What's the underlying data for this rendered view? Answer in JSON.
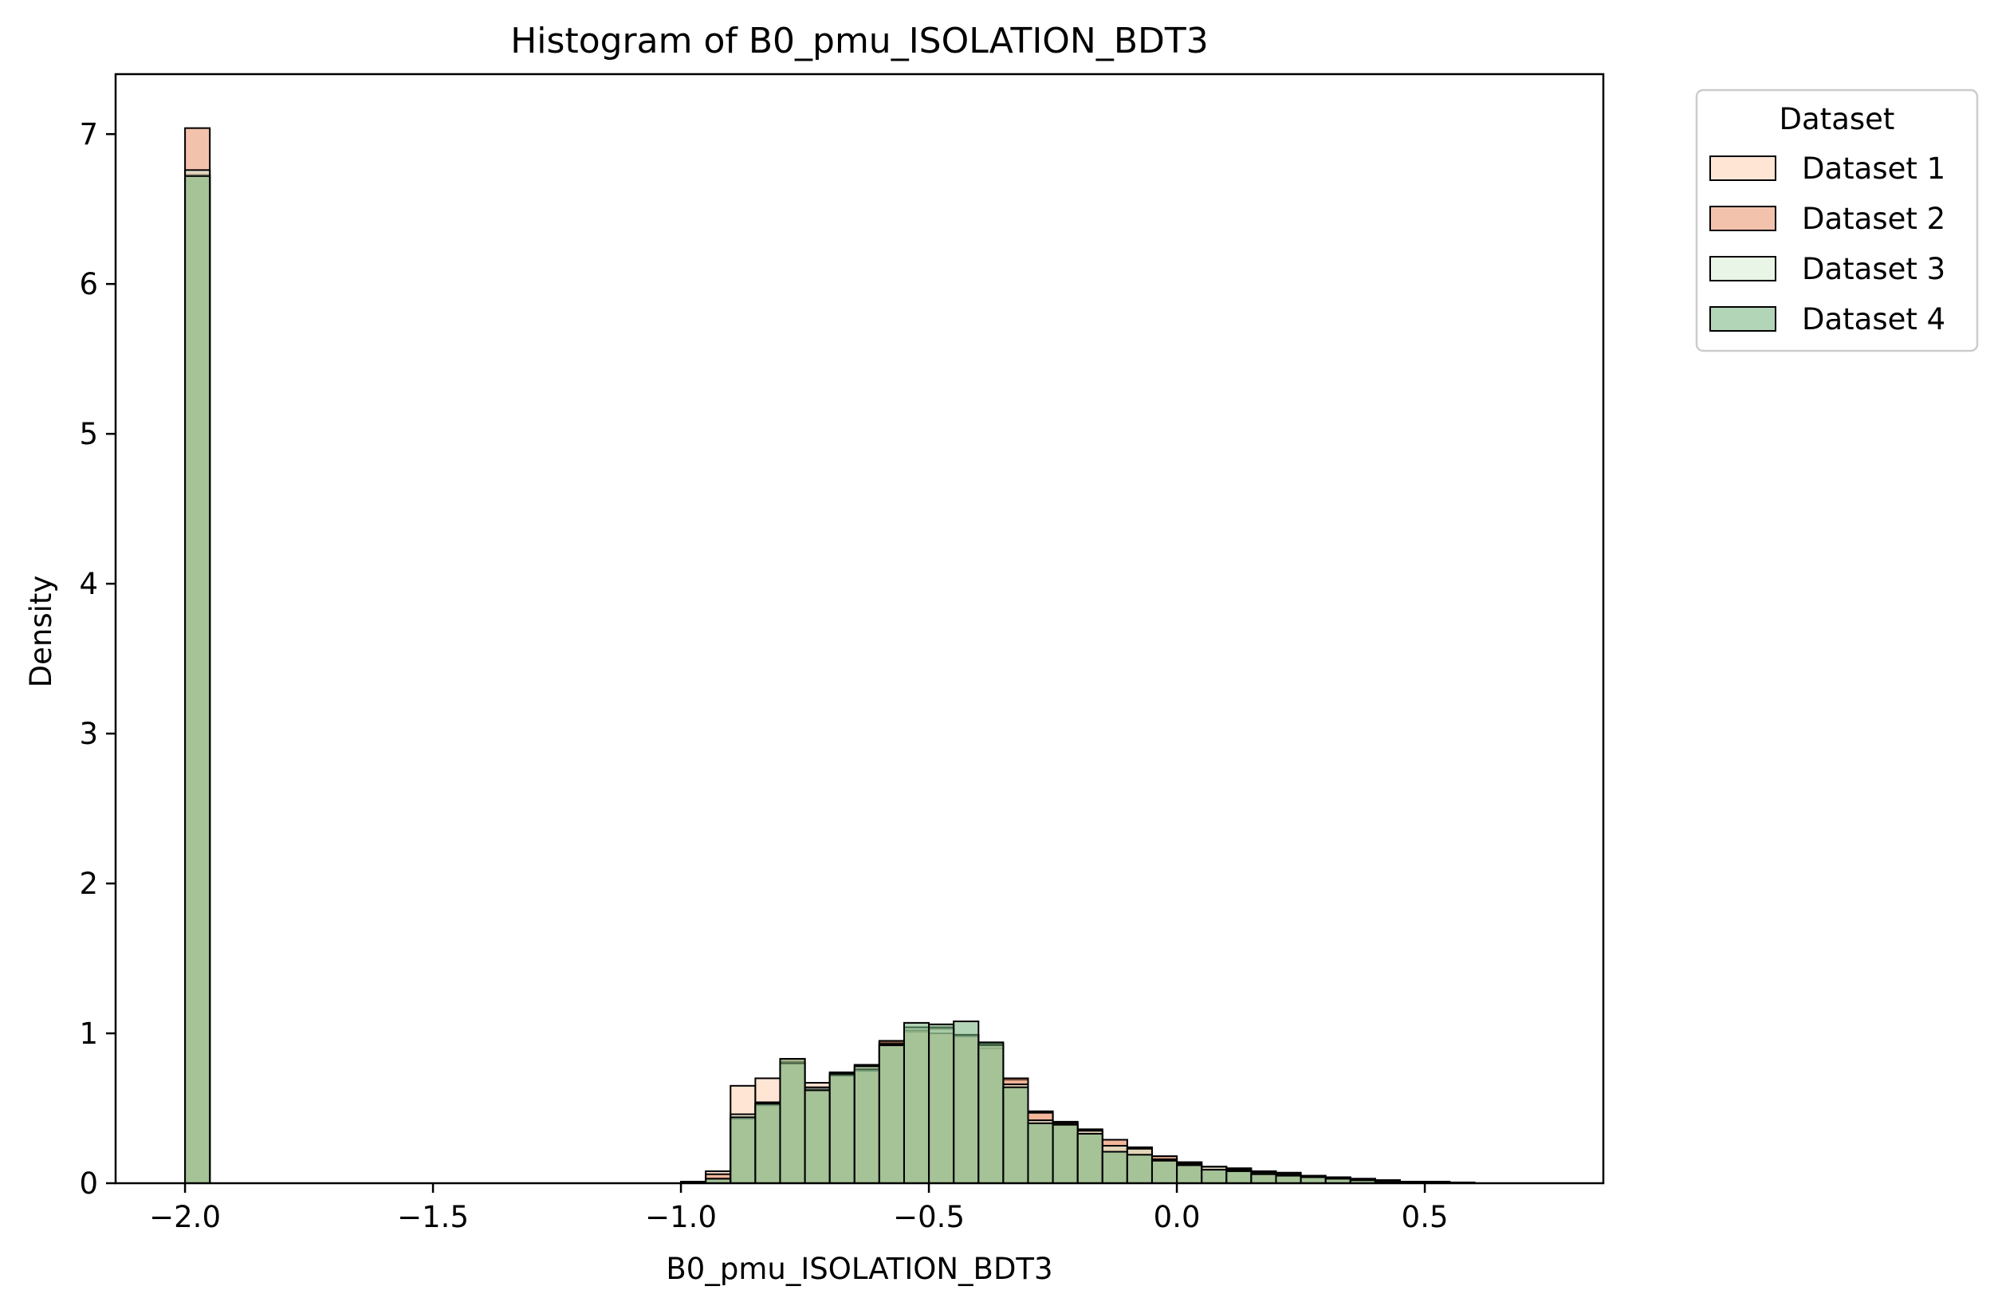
{
  "chart_data": {
    "type": "bar",
    "title": "Histogram of B0_pmu_ISOLATION_BDT3",
    "xlabel": "B0_pmu_ISOLATION_BDT3",
    "ylabel": "Density",
    "xlim": [
      -2.14,
      0.86
    ],
    "ylim": [
      0,
      7.4
    ],
    "xticks": [
      -2.0,
      -1.5,
      -1.0,
      -0.5,
      0.0,
      0.5
    ],
    "xtick_labels": [
      "−2.0",
      "−1.5",
      "−1.0",
      "−0.5",
      "0.0",
      "0.5"
    ],
    "yticks": [
      0,
      1,
      2,
      3,
      4,
      5,
      6,
      7
    ],
    "ytick_labels": [
      "0",
      "1",
      "2",
      "3",
      "4",
      "5",
      "6",
      "7"
    ],
    "grid": false,
    "legend": {
      "title": "Dataset",
      "placement": "outside-upper-right"
    },
    "bin_edges": [
      -2.0,
      -1.95,
      -1.9,
      -1.85,
      -1.8,
      -1.75,
      -1.7,
      -1.65,
      -1.6,
      -1.55,
      -1.5,
      -1.45,
      -1.4,
      -1.35,
      -1.3,
      -1.25,
      -1.2,
      -1.15,
      -1.1,
      -1.05,
      -1.0,
      -0.95,
      -0.9,
      -0.85,
      -0.8,
      -0.75,
      -0.7,
      -0.65,
      -0.6,
      -0.55,
      -0.5,
      -0.45,
      -0.4,
      -0.35,
      -0.3,
      -0.25,
      -0.2,
      -0.15,
      -0.1,
      -0.05,
      0.0,
      0.05,
      0.1,
      0.15,
      0.2,
      0.25,
      0.3,
      0.35,
      0.4,
      0.45,
      0.5,
      0.55,
      0.6,
      0.65,
      0.7,
      0.75
    ],
    "series": [
      {
        "name": "Dataset 1",
        "color": "#fdd0b0",
        "values": [
          6.73,
          0,
          0,
          0,
          0,
          0,
          0,
          0,
          0,
          0,
          0,
          0,
          0,
          0,
          0,
          0,
          0,
          0,
          0,
          0,
          0.01,
          0.08,
          0.65,
          0.7,
          0.81,
          0.67,
          0.74,
          0.79,
          0.94,
          1.01,
          1.03,
          0.99,
          0.9,
          0.69,
          0.48,
          0.41,
          0.35,
          0.29,
          0.23,
          0.18,
          0.14,
          0.11,
          0.1,
          0.08,
          0.07,
          0.05,
          0.04,
          0.03,
          0.02,
          0.01,
          0.01,
          0.005,
          0,
          0,
          0
        ]
      },
      {
        "name": "Dataset 2",
        "color": "#e8906a",
        "values": [
          7.04,
          0,
          0,
          0,
          0,
          0,
          0,
          0,
          0,
          0,
          0,
          0,
          0,
          0,
          0,
          0,
          0,
          0,
          0,
          0,
          0.01,
          0.06,
          0.43,
          0.52,
          0.83,
          0.63,
          0.73,
          0.75,
          0.95,
          1.02,
          1.0,
          0.98,
          0.93,
          0.7,
          0.47,
          0.41,
          0.36,
          0.29,
          0.24,
          0.18,
          0.14,
          0.11,
          0.09,
          0.08,
          0.07,
          0.05,
          0.04,
          0.03,
          0.02,
          0.01,
          0.01,
          0.005,
          0,
          0,
          0
        ]
      },
      {
        "name": "Dataset 3",
        "color": "#d7edd3",
        "values": [
          6.76,
          0,
          0,
          0,
          0,
          0,
          0,
          0,
          0,
          0,
          0,
          0,
          0,
          0,
          0,
          0,
          0,
          0,
          0,
          0,
          0.01,
          0.03,
          0.46,
          0.54,
          0.8,
          0.64,
          0.72,
          0.76,
          0.93,
          1.04,
          1.04,
          0.99,
          0.92,
          0.66,
          0.42,
          0.4,
          0.35,
          0.25,
          0.23,
          0.16,
          0.13,
          0.11,
          0.09,
          0.07,
          0.06,
          0.04,
          0.03,
          0.02,
          0.02,
          0.01,
          0.01,
          0.005,
          0,
          0,
          0
        ]
      },
      {
        "name": "Dataset 4",
        "color": "#74b37c",
        "values": [
          6.72,
          0,
          0,
          0,
          0,
          0,
          0,
          0,
          0,
          0,
          0,
          0,
          0,
          0,
          0,
          0,
          0,
          0,
          0,
          0,
          0.01,
          0.03,
          0.44,
          0.53,
          0.83,
          0.62,
          0.73,
          0.78,
          0.92,
          1.07,
          1.06,
          1.08,
          0.94,
          0.64,
          0.4,
          0.39,
          0.33,
          0.21,
          0.19,
          0.15,
          0.12,
          0.09,
          0.08,
          0.06,
          0.05,
          0.04,
          0.03,
          0.02,
          0.01,
          0.01,
          0.005,
          0.003,
          0,
          0,
          0
        ]
      }
    ]
  }
}
